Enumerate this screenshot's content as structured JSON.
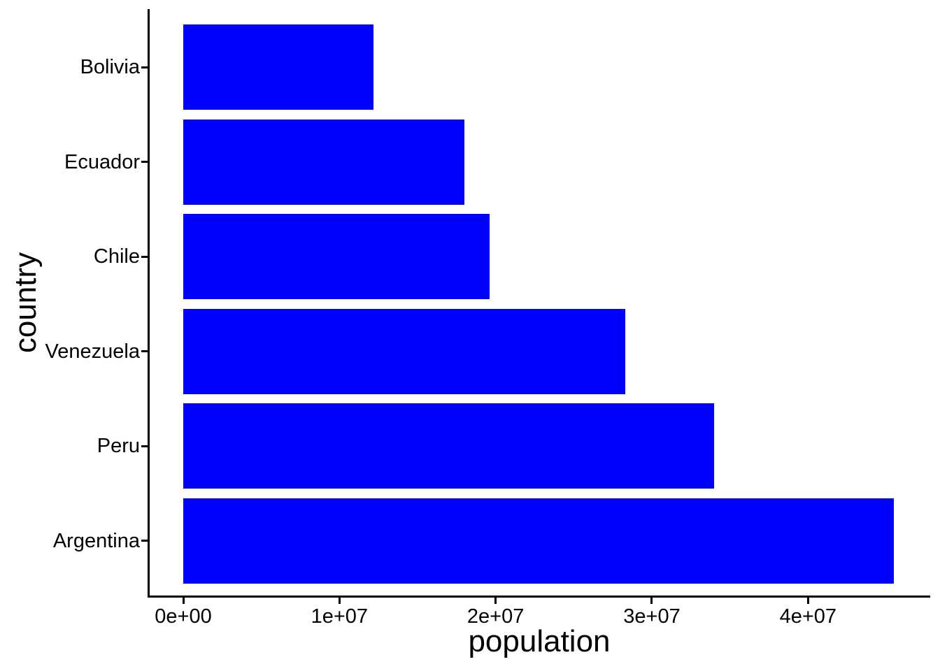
{
  "chart_data": {
    "type": "bar",
    "orientation": "horizontal",
    "title": "",
    "xlabel": "population",
    "ylabel": "country",
    "categories": [
      "Bolivia",
      "Ecuador",
      "Chile",
      "Venezuela",
      "Peru",
      "Argentina"
    ],
    "values": [
      12200000,
      18000000,
      19600000,
      28300000,
      34000000,
      45500000
    ],
    "x_ticks": [
      {
        "value": 0,
        "label": "0e+00"
      },
      {
        "value": 10000000,
        "label": "1e+07"
      },
      {
        "value": 20000000,
        "label": "2e+07"
      },
      {
        "value": 30000000,
        "label": "3e+07"
      },
      {
        "value": 40000000,
        "label": "4e+07"
      }
    ],
    "xlim": [
      0,
      47800000
    ],
    "grid": false,
    "legend": false,
    "bar_color": "#0000ff",
    "axis_color": "#000000",
    "text_color": "#000000",
    "background_color": "#ffffff"
  }
}
